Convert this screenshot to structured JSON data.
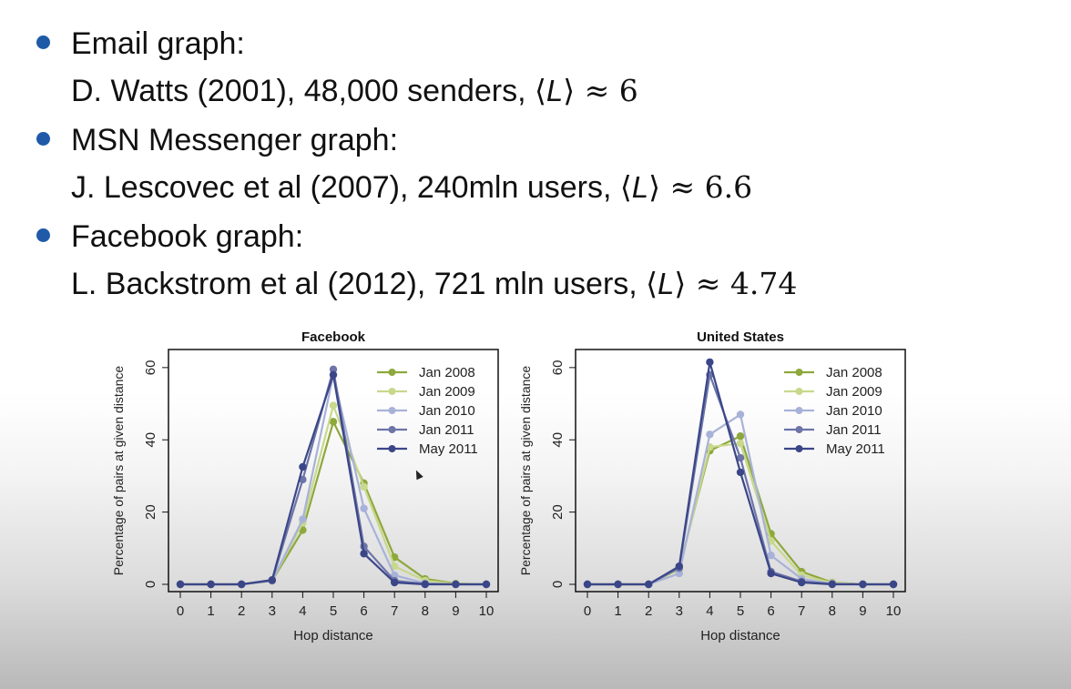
{
  "bullets": [
    {
      "title": "Email graph:",
      "ref": "D. Watts (2001), 48,000 senders, ",
      "value": "6"
    },
    {
      "title": "MSN Messenger graph:",
      "ref": "J. Lescovec et al (2007), 240mln users, ",
      "value": "6.6"
    },
    {
      "title": "Facebook graph:",
      "ref": "L. Backstrom et al (2012), 721 mln users, ",
      "value": "4.74"
    }
  ],
  "math": {
    "open": "⟨",
    "var": "L",
    "close": "⟩",
    "approx": " ≈ "
  },
  "chart_data": [
    {
      "type": "line",
      "title": "Facebook",
      "xlabel": "Hop distance",
      "ylabel": "Percentage of pairs at given distance",
      "x": [
        0,
        1,
        2,
        3,
        4,
        5,
        6,
        7,
        8,
        9,
        10
      ],
      "xlim": [
        0,
        10
      ],
      "ylim": [
        0,
        65
      ],
      "xticks": [
        0,
        1,
        2,
        3,
        4,
        5,
        6,
        7,
        8,
        9,
        10
      ],
      "yticks": [
        0,
        20,
        40,
        60
      ],
      "legend_position": "top-right",
      "series": [
        {
          "name": "Jan 2008",
          "color": "#8ea83c",
          "values": [
            0,
            0,
            0,
            1,
            15,
            45,
            28,
            7.5,
            1.5,
            0.2,
            0
          ]
        },
        {
          "name": "Jan 2009",
          "color": "#c8d88c",
          "values": [
            0,
            0,
            0,
            1,
            17,
            49.5,
            27,
            5,
            1,
            0.1,
            0
          ]
        },
        {
          "name": "Jan 2010",
          "color": "#a8b2d8",
          "values": [
            0,
            0,
            0,
            1,
            18,
            58,
            21,
            2.5,
            0.3,
            0,
            0
          ]
        },
        {
          "name": "Jan 2011",
          "color": "#6c74a8",
          "values": [
            0,
            0,
            0,
            1,
            29,
            59.5,
            10.5,
            1,
            0.1,
            0,
            0
          ]
        },
        {
          "name": "May 2011",
          "color": "#3b4688",
          "values": [
            0,
            0,
            0,
            1.2,
            32.5,
            58,
            8.5,
            0.5,
            0,
            0,
            0
          ]
        }
      ]
    },
    {
      "type": "line",
      "title": "United States",
      "xlabel": "Hop distance",
      "ylabel": "Percentage of pairs at given distance",
      "x": [
        0,
        1,
        2,
        3,
        4,
        5,
        6,
        7,
        8,
        9,
        10
      ],
      "xlim": [
        0,
        10
      ],
      "ylim": [
        0,
        65
      ],
      "xticks": [
        0,
        1,
        2,
        3,
        4,
        5,
        6,
        7,
        8,
        9,
        10
      ],
      "yticks": [
        0,
        20,
        40,
        60
      ],
      "legend_position": "top-right",
      "series": [
        {
          "name": "Jan 2008",
          "color": "#8ea83c",
          "values": [
            0,
            0,
            0,
            4.5,
            37,
            41,
            14,
            3.5,
            0.5,
            0,
            0
          ]
        },
        {
          "name": "Jan 2009",
          "color": "#c8d88c",
          "values": [
            0,
            0,
            0,
            4,
            38,
            39,
            12,
            2.5,
            0.4,
            0,
            0
          ]
        },
        {
          "name": "Jan 2010",
          "color": "#a8b2d8",
          "values": [
            0,
            0,
            0,
            3,
            41.5,
            47,
            8,
            1.5,
            0.2,
            0,
            0
          ]
        },
        {
          "name": "Jan 2011",
          "color": "#6c74a8",
          "values": [
            0,
            0,
            0,
            4.5,
            58,
            35,
            3.5,
            0.8,
            0.1,
            0,
            0
          ]
        },
        {
          "name": "May 2011",
          "color": "#3b4688",
          "values": [
            0,
            0,
            0,
            5,
            61.5,
            31,
            3,
            0.5,
            0,
            0,
            0
          ]
        }
      ]
    }
  ]
}
